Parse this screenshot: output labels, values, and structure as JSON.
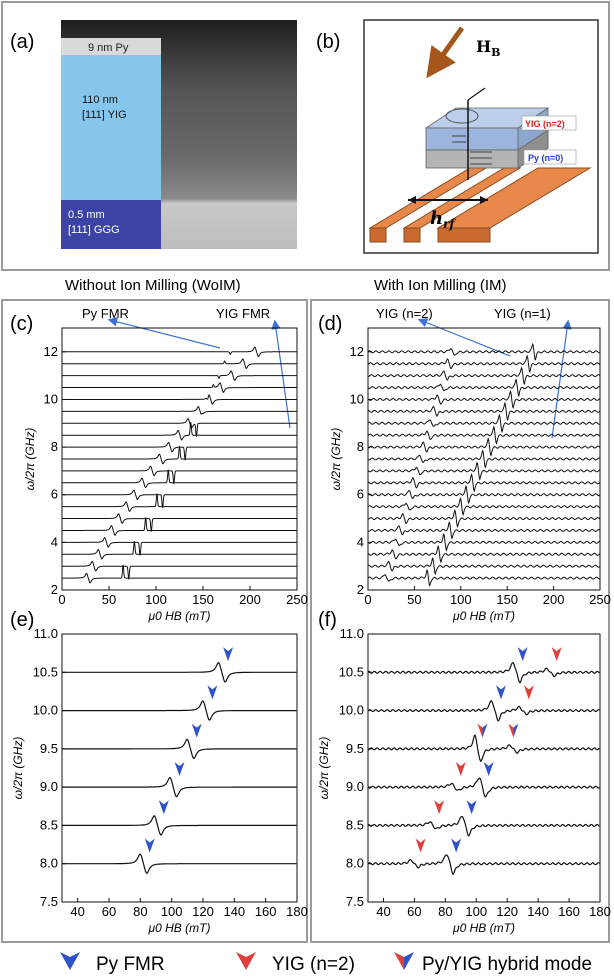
{
  "panels": {
    "a": {
      "label": "(a)",
      "layers": [
        {
          "text": "9 nm Py"
        },
        {
          "text": "110 nm",
          "sub": "[111] YIG"
        },
        {
          "text": "0.5 mm",
          "sub": "[111] GGG"
        }
      ],
      "colors": {
        "py": "#d9d9d9",
        "yig": "#86c6ec",
        "ggg": "#3b44a5"
      }
    },
    "b": {
      "label": "(b)",
      "field_label": "H",
      "field_sub": "B",
      "hrf_label": "h",
      "hrf_sub": "rf",
      "yig_tag": "YIG (n=2)",
      "py_tag": "Py (n=0)"
    },
    "col_titles": [
      "Without Ion Milling (WoIM)",
      "With Ion Milling (IM)"
    ],
    "c": {
      "label": "(c)",
      "anno_left": "Py FMR",
      "anno_right": "YIG FMR"
    },
    "d": {
      "label": "(d)",
      "anno_left": "YIG (n=2)",
      "anno_right": "YIG (n=1)"
    },
    "e": {
      "label": "(e)"
    },
    "f": {
      "label": "(f)"
    }
  },
  "legend": {
    "items": [
      {
        "label": "Py FMR",
        "color": "#2e52c9"
      },
      {
        "label": "YIG (n=2)",
        "color": "#e0403a"
      },
      {
        "label": "Py/YIG hybrid mode",
        "color": "split"
      }
    ]
  },
  "axes_text": {
    "ylabel": "ω/2π (GHz)",
    "xlabel": "μ0 HB (mT)"
  },
  "chart_data": [
    {
      "type": "line",
      "panel": "c",
      "title": "Without Ion Milling (WoIM)",
      "xlabel": "μ0 HB (mT)",
      "ylabel": "ω/2π (GHz)",
      "xlim": [
        0,
        250
      ],
      "ylim": [
        2,
        13
      ],
      "xticks": [
        0,
        50,
        100,
        150,
        200,
        250
      ],
      "yticks": [
        2,
        4,
        6,
        8,
        10,
        12
      ],
      "offsets_GHz": [
        2.5,
        3.0,
        3.5,
        4.0,
        4.5,
        5.0,
        5.5,
        6.0,
        6.5,
        7.0,
        7.5,
        8.0,
        8.5,
        9.0,
        9.5,
        10.0,
        10.5,
        11.0,
        11.5,
        12.0
      ],
      "annotations": [
        "Py FMR",
        "YIG FMR"
      ]
    },
    {
      "type": "line",
      "panel": "d",
      "title": "With Ion Milling (IM)",
      "xlabel": "μ0 HB (mT)",
      "ylabel": "ω/2π (GHz)",
      "xlim": [
        0,
        250
      ],
      "ylim": [
        2,
        13
      ],
      "xticks": [
        0,
        50,
        100,
        150,
        200,
        250
      ],
      "yticks": [
        2,
        4,
        6,
        8,
        10,
        12
      ],
      "offsets_GHz": [
        2.5,
        3.0,
        3.5,
        4.0,
        4.5,
        5.0,
        5.5,
        6.0,
        6.5,
        7.0,
        7.5,
        8.0,
        8.5,
        9.0,
        9.5,
        10.0,
        10.5,
        11.0,
        11.5,
        12.0
      ],
      "annotations": [
        "YIG (n=2)",
        "YIG (n=1)"
      ]
    },
    {
      "type": "line",
      "panel": "e",
      "xlabel": "μ0 HB (mT)",
      "ylabel": "ω/2π (GHz)",
      "xlim": [
        30,
        180
      ],
      "ylim": [
        7.5,
        11.0
      ],
      "xticks": [
        40,
        60,
        80,
        100,
        120,
        140,
        160,
        180
      ],
      "yticks": [
        7.5,
        8.0,
        8.5,
        9.0,
        9.5,
        10.0,
        10.5,
        11.0
      ],
      "series": [
        {
          "f": 8.0,
          "py": 84
        },
        {
          "f": 8.5,
          "py": 93
        },
        {
          "f": 9.0,
          "py": 103
        },
        {
          "f": 9.5,
          "py": 114
        },
        {
          "f": 10.0,
          "py": 124
        },
        {
          "f": 10.5,
          "py": 134
        }
      ]
    },
    {
      "type": "line",
      "panel": "f",
      "xlabel": "μ0 HB (mT)",
      "ylabel": "ω/2π (GHz)",
      "xlim": [
        30,
        180
      ],
      "ylim": [
        7.5,
        11.0
      ],
      "xticks": [
        40,
        60,
        80,
        100,
        120,
        140,
        160,
        180
      ],
      "yticks": [
        7.5,
        8.0,
        8.5,
        9.0,
        9.5,
        10.0,
        10.5,
        11.0
      ],
      "series": [
        {
          "f": 8.0,
          "yig": 62,
          "py": 85
        },
        {
          "f": 8.5,
          "yig": 74,
          "py": 95
        },
        {
          "f": 9.0,
          "yig": 88,
          "py": 106
        },
        {
          "f": 9.5,
          "hybrid": 101,
          "hybrid2": 124
        },
        {
          "f": 10.0,
          "py": 114,
          "yig": 132
        },
        {
          "f": 10.5,
          "py": 128,
          "yig": 150
        }
      ]
    }
  ]
}
